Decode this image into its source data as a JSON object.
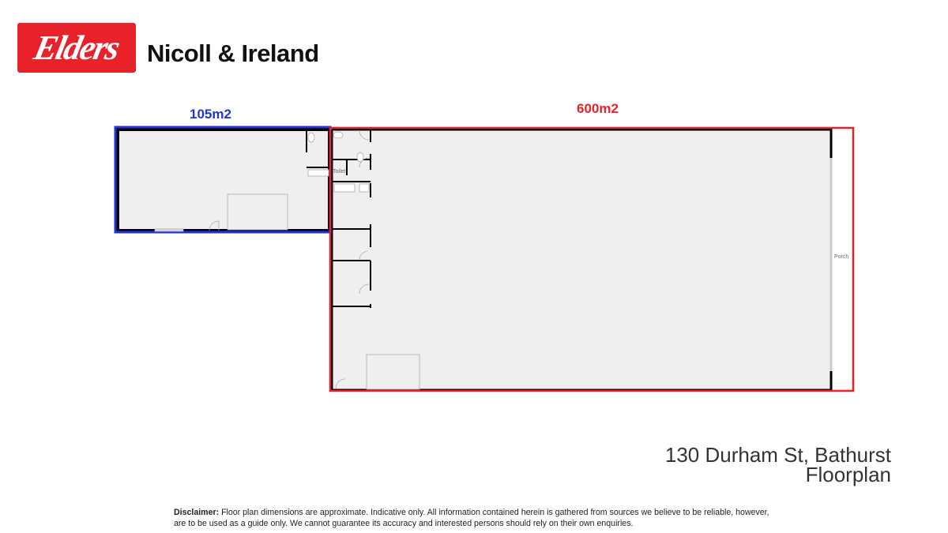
{
  "brand": {
    "logo_text": "Elders",
    "logo_color": "#e8212a",
    "agency": "Nicoll & Ireland"
  },
  "areas": [
    {
      "label": "105m2",
      "color": "#2433d6"
    },
    {
      "label": "600m2",
      "color": "#e8212a"
    }
  ],
  "rooms": {
    "toilet": "Toilet",
    "porch": "Porch"
  },
  "footer": {
    "address": "130 Durham St, Bathurst",
    "subtitle": "Floorplan",
    "disclaimer_label": "Disclaimer:",
    "disclaimer_text": "Floor plan dimensions are approximate. Indicative only. All information contained herein is gathered from sources we believe to be reliable, however, are to be used as a guide only. We cannot guarantee its accuracy and interested persons should rely on their own enquiries."
  }
}
